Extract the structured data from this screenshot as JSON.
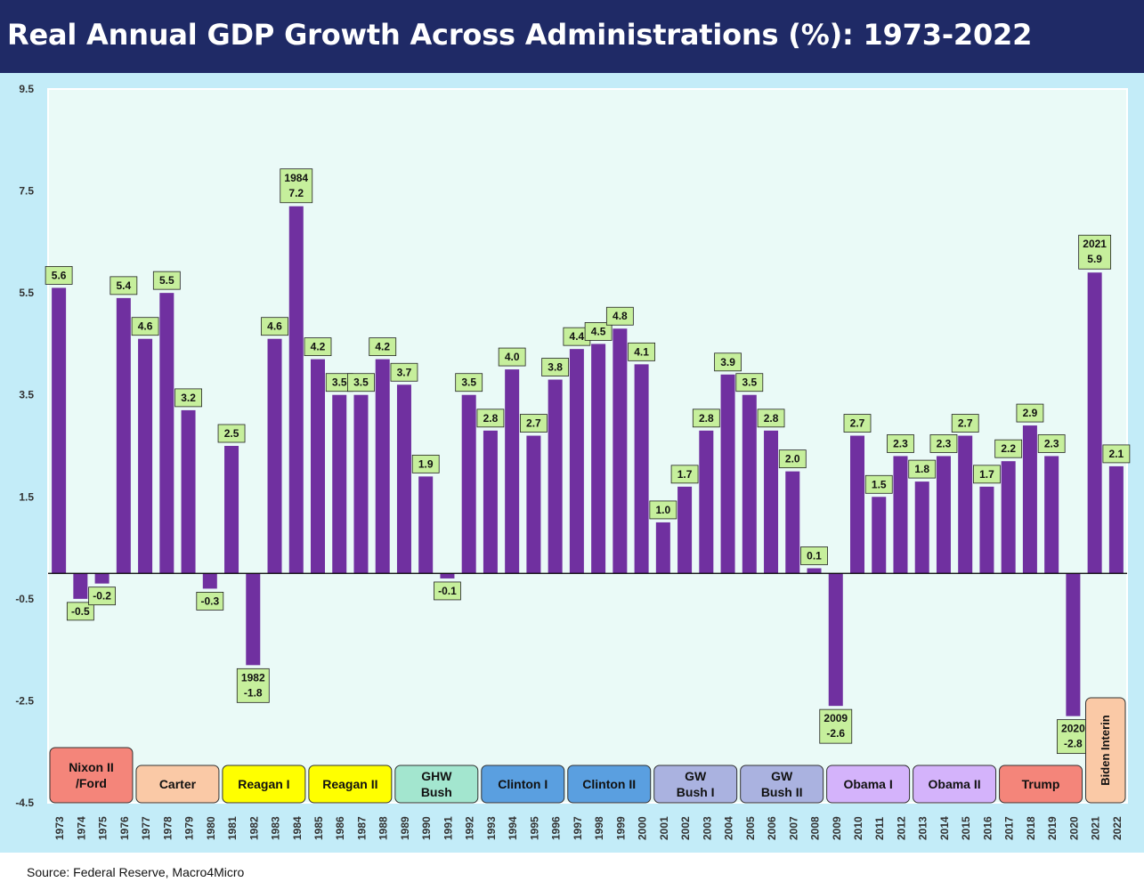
{
  "header": {
    "title": "Real Annual GDP Growth Across Administrations (%): 1973-2022"
  },
  "footer": {
    "source": "Source: Federal Reserve, Macro4Micro"
  },
  "colors": {
    "header_bg": "#1f2a66",
    "chart_bg": "#c3ecf8",
    "plot_bg": "#eafaf7",
    "bar": "#7030a0",
    "label_bg": "#c6ef9c"
  },
  "chart_data": {
    "type": "bar",
    "title": "Real Annual GDP Growth Across Administrations (%): 1973-2022",
    "xlabel": "",
    "ylabel": "",
    "ylim": [
      -4.5,
      9.5
    ],
    "y_ticks": [
      "9.5",
      "7.5",
      "5.5",
      "3.5",
      "1.5",
      "-0.5",
      "-2.5",
      "-4.5"
    ],
    "grid": false,
    "categories": [
      "1973",
      "1974",
      "1975",
      "1976",
      "1977",
      "1978",
      "1979",
      "1980",
      "1981",
      "1982",
      "1983",
      "1984",
      "1985",
      "1986",
      "1987",
      "1988",
      "1989",
      "1990",
      "1991",
      "1992",
      "1993",
      "1994",
      "1995",
      "1996",
      "1997",
      "1998",
      "1999",
      "2000",
      "2001",
      "2002",
      "2003",
      "2004",
      "2005",
      "2006",
      "2007",
      "2008",
      "2009",
      "2010",
      "2011",
      "2012",
      "2013",
      "2014",
      "2015",
      "2016",
      "2017",
      "2018",
      "2019",
      "2020",
      "2021",
      "2022"
    ],
    "values": [
      5.6,
      -0.5,
      -0.2,
      5.4,
      4.6,
      5.5,
      3.2,
      -0.3,
      2.5,
      -1.8,
      4.6,
      7.2,
      4.2,
      3.5,
      3.5,
      4.2,
      3.7,
      1.9,
      -0.1,
      3.5,
      2.8,
      4.0,
      2.7,
      3.8,
      4.4,
      4.5,
      4.8,
      4.1,
      1.0,
      1.7,
      2.8,
      3.9,
      3.5,
      2.8,
      2.0,
      0.1,
      -2.6,
      2.7,
      1.5,
      2.3,
      1.8,
      2.3,
      2.7,
      1.7,
      2.2,
      2.9,
      2.3,
      -2.8,
      5.9,
      2.1
    ],
    "data_labels": [
      "5.6",
      "-0.5",
      "-0.2",
      "5.4",
      "4.6",
      "5.5",
      "3.2",
      "-0.3",
      "2.5",
      "-1.8",
      "4.6",
      "7.2",
      "4.2",
      "3.5",
      "3.5",
      "4.2",
      "3.7",
      "1.9",
      "-0.1",
      "3.5",
      "2.8",
      "4.0",
      "2.7",
      "3.8",
      "4.4",
      "4.5",
      "4.8",
      "4.1",
      "1.0",
      "1.7",
      "2.8",
      "3.9",
      "3.5",
      "2.8",
      "2.0",
      "0.1",
      "-2.6",
      "2.7",
      "1.5",
      "2.3",
      "1.8",
      "2.3",
      "2.7",
      "1.7",
      "2.2",
      "2.9",
      "2.3",
      "-2.8",
      "5.9",
      "2.1"
    ],
    "annotated_years": [
      "1982",
      "1984",
      "2009",
      "2020",
      "2021"
    ],
    "administrations": [
      {
        "lines": [
          "Nixon II",
          "/Ford"
        ],
        "from": 0,
        "to": 3,
        "color": "#f4857a"
      },
      {
        "lines": [
          "Carter"
        ],
        "from": 4,
        "to": 7,
        "color": "#fac9a6"
      },
      {
        "lines": [
          "Reagan I"
        ],
        "from": 8,
        "to": 11,
        "color": "#ffff00"
      },
      {
        "lines": [
          "Reagan II"
        ],
        "from": 12,
        "to": 15,
        "color": "#ffff00"
      },
      {
        "lines": [
          "GHW",
          "Bush"
        ],
        "from": 16,
        "to": 19,
        "color": "#a3e6cf"
      },
      {
        "lines": [
          "Clinton I"
        ],
        "from": 20,
        "to": 23,
        "color": "#5a9fe0"
      },
      {
        "lines": [
          "Clinton II"
        ],
        "from": 24,
        "to": 27,
        "color": "#5a9fe0"
      },
      {
        "lines": [
          "GW",
          "Bush I"
        ],
        "from": 28,
        "to": 31,
        "color": "#aab2e0"
      },
      {
        "lines": [
          "GW",
          "Bush II"
        ],
        "from": 32,
        "to": 35,
        "color": "#aab2e0"
      },
      {
        "lines": [
          "Obama I"
        ],
        "from": 36,
        "to": 39,
        "color": "#d4b3fb"
      },
      {
        "lines": [
          "Obama II"
        ],
        "from": 40,
        "to": 43,
        "color": "#d4b3fb"
      },
      {
        "lines": [
          "Trump"
        ],
        "from": 44,
        "to": 47,
        "color": "#f4857a"
      },
      {
        "lines": [
          "Biden Interin"
        ],
        "from": 48,
        "to": 49,
        "color": "#fac9a6",
        "vertical": true
      }
    ]
  }
}
